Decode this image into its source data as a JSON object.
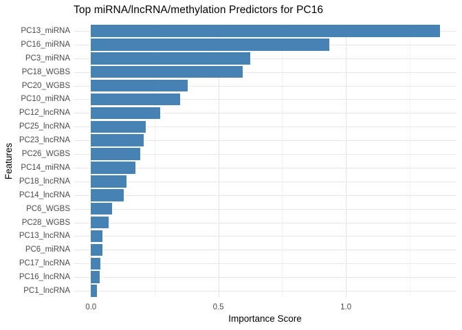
{
  "chart_data": {
    "type": "bar",
    "orientation": "horizontal",
    "title": "Top miRNA/lncRNA/methylation Predictors for PC16",
    "xlabel": "Importance Score",
    "ylabel": "Features",
    "categories": [
      "PC13_miRNA",
      "PC16_miRNA",
      "PC3_miRNA",
      "PC18_WGBS",
      "PC20_WGBS",
      "PC10_miRNA",
      "PC12_lncRNA",
      "PC25_lncRNA",
      "PC23_lncRNA",
      "PC26_WGBS",
      "PC14_miRNA",
      "PC18_lncRNA",
      "PC14_lncRNA",
      "PC6_WGBS",
      "PC28_WGBS",
      "PC13_lncRNA",
      "PC6_miRNA",
      "PC17_lncRNA",
      "PC16_lncRNA",
      "PC1_lncRNA"
    ],
    "values": [
      1.37,
      0.935,
      0.625,
      0.595,
      0.38,
      0.35,
      0.272,
      0.216,
      0.208,
      0.195,
      0.175,
      0.14,
      0.129,
      0.082,
      0.07,
      0.046,
      0.045,
      0.037,
      0.034,
      0.024
    ],
    "xlim": [
      -0.068,
      1.434
    ],
    "xticks": [
      0,
      0.5,
      1.0
    ],
    "xtick_labels": [
      "0.0",
      "0.5",
      "1.0"
    ],
    "minor_gridlines": [
      0.25,
      0.75,
      1.25
    ],
    "bar_color": "#4682B4",
    "background_color": "#ffffff",
    "major_grid_color": "#e2e2e2",
    "minor_grid_color": "#f1f1f1",
    "grid": true,
    "legend": false
  }
}
